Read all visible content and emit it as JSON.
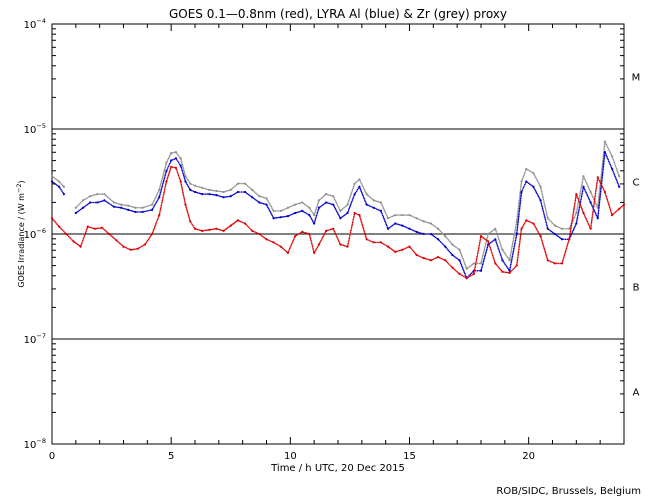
{
  "chart_data": {
    "type": "scatter",
    "title": "GOES 0.1—0.8nm (red), LYRA Al (blue) & Zr (grey) proxy",
    "xlabel": "Time / h UTC, 20 Dec 2015",
    "ylabel": "GOES Irradiance / (W m⁻²)",
    "ylabel_parts": {
      "main": "GOES Irradiance / (W m",
      "sup": "−2",
      "close": ")"
    },
    "xlim": [
      0,
      24
    ],
    "ylim_log10": [
      -8,
      -4
    ],
    "x_ticks": [
      {
        "value": 0,
        "label": "0"
      },
      {
        "value": 5,
        "label": "5"
      },
      {
        "value": 10,
        "label": "10"
      },
      {
        "value": 15,
        "label": "15"
      },
      {
        "value": 20,
        "label": "20"
      }
    ],
    "y_ticks": [
      {
        "exp": -8,
        "label": "10",
        "sup": "−8"
      },
      {
        "exp": -7,
        "label": "10",
        "sup": "−7"
      },
      {
        "exp": -6,
        "label": "10",
        "sup": "−6"
      },
      {
        "exp": -5,
        "label": "10",
        "sup": "−5"
      },
      {
        "exp": -4,
        "label": "10",
        "sup": "−4"
      }
    ],
    "thresholds_log10": [
      -7,
      -6,
      -5
    ],
    "flare_classes": [
      {
        "label": "A",
        "log10_mid": -7.5
      },
      {
        "label": "B",
        "log10_mid": -6.5
      },
      {
        "label": "C",
        "log10_mid": -5.5
      },
      {
        "label": "M",
        "log10_mid": -4.5
      }
    ],
    "series": [
      {
        "name": "GOES 0.1—0.8nm",
        "color": "#dd0000",
        "x": [
          0.0,
          0.3,
          0.6,
          0.9,
          1.2,
          1.5,
          1.8,
          2.1,
          2.4,
          2.7,
          3.0,
          3.3,
          3.6,
          3.9,
          4.2,
          4.5,
          4.8,
          5.0,
          5.2,
          5.4,
          5.6,
          5.8,
          6.0,
          6.3,
          6.6,
          6.9,
          7.2,
          7.5,
          7.8,
          8.1,
          8.4,
          8.7,
          9.0,
          9.3,
          9.6,
          9.9,
          10.2,
          10.5,
          10.8,
          11.0,
          11.2,
          11.5,
          11.8,
          12.1,
          12.4,
          12.7,
          12.9,
          13.2,
          13.5,
          13.8,
          14.1,
          14.4,
          14.7,
          15.0,
          15.3,
          15.6,
          15.9,
          16.2,
          16.5,
          16.8,
          17.1,
          17.4,
          17.7,
          18.0,
          18.3,
          18.6,
          18.9,
          19.2,
          19.5,
          19.7,
          19.9,
          20.2,
          20.5,
          20.8,
          21.1,
          21.4,
          21.7,
          22.0,
          22.3,
          22.6,
          22.9,
          23.2,
          23.5,
          23.8,
          24.0
        ],
        "log10": [
          -5.85,
          -5.93,
          -6.0,
          -6.07,
          -6.12,
          -5.93,
          -5.95,
          -5.94,
          -6.0,
          -6.06,
          -6.12,
          -6.15,
          -6.14,
          -6.1,
          -6.0,
          -5.82,
          -5.5,
          -5.36,
          -5.37,
          -5.5,
          -5.72,
          -5.88,
          -5.95,
          -5.97,
          -5.96,
          -5.95,
          -5.97,
          -5.92,
          -5.87,
          -5.9,
          -5.97,
          -6.0,
          -6.05,
          -6.08,
          -6.12,
          -6.18,
          -6.02,
          -5.98,
          -6.0,
          -6.18,
          -6.1,
          -5.97,
          -5.95,
          -6.1,
          -6.12,
          -5.8,
          -5.82,
          -6.05,
          -6.08,
          -6.08,
          -6.12,
          -6.17,
          -6.15,
          -6.12,
          -6.2,
          -6.23,
          -6.25,
          -6.22,
          -6.25,
          -6.32,
          -6.38,
          -6.42,
          -6.38,
          -6.02,
          -6.07,
          -6.28,
          -6.36,
          -6.37,
          -6.3,
          -5.95,
          -5.87,
          -5.9,
          -6.02,
          -6.25,
          -6.28,
          -6.28,
          -6.05,
          -5.62,
          -5.8,
          -5.95,
          -5.46,
          -5.6,
          -5.82,
          -5.76,
          -5.72
        ]
      },
      {
        "name": "LYRA Al proxy",
        "color": "#0000cc",
        "x": [
          0.0,
          0.3,
          0.5,
          1.0,
          1.3,
          1.6,
          1.9,
          2.2,
          2.6,
          2.9,
          3.2,
          3.5,
          3.8,
          4.2,
          4.5,
          4.8,
          5.0,
          5.2,
          5.4,
          5.6,
          5.8,
          6.0,
          6.3,
          6.6,
          6.9,
          7.2,
          7.5,
          7.8,
          8.1,
          8.4,
          8.7,
          9.0,
          9.3,
          9.6,
          9.9,
          10.2,
          10.5,
          10.8,
          11.0,
          11.2,
          11.5,
          11.8,
          12.1,
          12.4,
          12.7,
          12.9,
          13.2,
          13.5,
          13.8,
          14.1,
          14.4,
          14.7,
          15.0,
          15.3,
          15.6,
          15.9,
          16.2,
          16.5,
          16.8,
          17.1,
          17.4,
          17.7,
          18.0,
          18.3,
          18.6,
          18.9,
          19.2,
          19.5,
          19.7,
          19.9,
          20.2,
          20.5,
          20.8,
          21.1,
          21.4,
          21.7,
          22.0,
          22.3,
          22.6,
          22.9,
          23.2,
          23.5,
          23.8
        ],
        "log10": [
          -5.5,
          -5.55,
          -5.62,
          -5.8,
          -5.75,
          -5.7,
          -5.7,
          -5.68,
          -5.74,
          -5.75,
          -5.77,
          -5.79,
          -5.79,
          -5.77,
          -5.65,
          -5.4,
          -5.3,
          -5.28,
          -5.35,
          -5.5,
          -5.58,
          -5.6,
          -5.62,
          -5.62,
          -5.63,
          -5.65,
          -5.64,
          -5.6,
          -5.6,
          -5.65,
          -5.7,
          -5.72,
          -5.85,
          -5.84,
          -5.83,
          -5.8,
          -5.78,
          -5.82,
          -5.9,
          -5.75,
          -5.7,
          -5.72,
          -5.85,
          -5.8,
          -5.62,
          -5.55,
          -5.72,
          -5.75,
          -5.78,
          -5.95,
          -5.9,
          -5.92,
          -5.95,
          -5.98,
          -6.0,
          -6.0,
          -6.05,
          -6.12,
          -6.2,
          -6.25,
          -6.42,
          -6.35,
          -6.35,
          -6.1,
          -6.05,
          -6.25,
          -6.35,
          -6.0,
          -5.6,
          -5.5,
          -5.55,
          -5.68,
          -5.95,
          -6.0,
          -6.05,
          -6.05,
          -5.9,
          -5.55,
          -5.7,
          -5.85,
          -5.22,
          -5.38,
          -5.55
        ]
      },
      {
        "name": "LYRA Zr proxy",
        "color": "#909090",
        "x": [
          0.0,
          0.3,
          0.5,
          1.0,
          1.3,
          1.6,
          1.9,
          2.2,
          2.6,
          2.9,
          3.2,
          3.5,
          3.8,
          4.2,
          4.5,
          4.8,
          5.0,
          5.2,
          5.4,
          5.6,
          5.8,
          6.0,
          6.3,
          6.6,
          6.9,
          7.2,
          7.5,
          7.8,
          8.1,
          8.4,
          8.7,
          9.0,
          9.3,
          9.6,
          9.9,
          10.2,
          10.5,
          10.8,
          11.0,
          11.2,
          11.5,
          11.8,
          12.1,
          12.4,
          12.7,
          12.9,
          13.2,
          13.5,
          13.8,
          14.1,
          14.4,
          14.7,
          15.0,
          15.3,
          15.6,
          15.9,
          16.2,
          16.5,
          16.8,
          17.1,
          17.4,
          17.7,
          18.0,
          18.3,
          18.6,
          18.9,
          19.2,
          19.5,
          19.7,
          19.9,
          20.2,
          20.5,
          20.8,
          21.1,
          21.4,
          21.7,
          22.0,
          22.3,
          22.6,
          22.9,
          23.2,
          23.5,
          23.8
        ],
        "log10": [
          -5.45,
          -5.5,
          -5.55,
          -5.75,
          -5.68,
          -5.64,
          -5.62,
          -5.62,
          -5.7,
          -5.72,
          -5.73,
          -5.75,
          -5.75,
          -5.72,
          -5.58,
          -5.32,
          -5.23,
          -5.22,
          -5.28,
          -5.45,
          -5.52,
          -5.54,
          -5.56,
          -5.58,
          -5.59,
          -5.6,
          -5.58,
          -5.52,
          -5.52,
          -5.58,
          -5.64,
          -5.66,
          -5.78,
          -5.78,
          -5.75,
          -5.72,
          -5.7,
          -5.75,
          -5.82,
          -5.68,
          -5.62,
          -5.64,
          -5.78,
          -5.72,
          -5.52,
          -5.48,
          -5.62,
          -5.68,
          -5.7,
          -5.85,
          -5.82,
          -5.82,
          -5.82,
          -5.85,
          -5.88,
          -5.9,
          -5.95,
          -6.02,
          -6.1,
          -6.15,
          -6.33,
          -6.28,
          -6.28,
          -6.0,
          -5.95,
          -6.15,
          -6.25,
          -5.88,
          -5.5,
          -5.38,
          -5.42,
          -5.55,
          -5.85,
          -5.92,
          -5.95,
          -5.95,
          -5.8,
          -5.45,
          -5.6,
          -5.75,
          -5.12,
          -5.26,
          -5.45
        ]
      }
    ],
    "credit": "ROB/SIDC, Brussels, Belgium"
  }
}
